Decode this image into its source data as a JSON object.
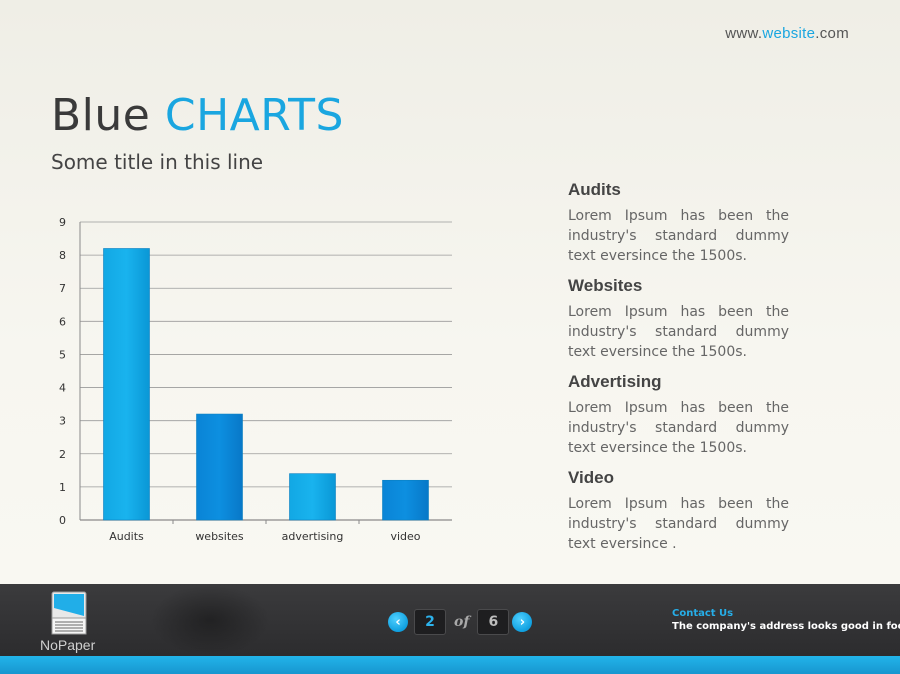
{
  "header": {
    "website_prefix": "www.",
    "website_accent": "website",
    "website_suffix": ".com"
  },
  "title": {
    "part1": "Blue ",
    "part2": "CHARTS",
    "subtitle": "Some title in this line"
  },
  "colors": {
    "accent": "#1aa6e0",
    "bar_light": "#19b3ee",
    "bar_dark": "#0d8fe0",
    "footer": "#333335",
    "bottom_bar": "#1ea6e0"
  },
  "chart_data": {
    "type": "bar",
    "categories": [
      "Audits",
      "websites",
      "advertising",
      "video"
    ],
    "values": [
      8.2,
      3.2,
      1.4,
      1.2
    ],
    "title": "",
    "xlabel": "",
    "ylabel": "",
    "ylim": [
      0,
      9
    ],
    "yticks": [
      0,
      1,
      2,
      3,
      4,
      5,
      6,
      7,
      8,
      9
    ],
    "grid": true
  },
  "legend": [
    {
      "title": "Audits",
      "text": "Lorem Ipsum has been the industry's standard dummy text eversince the 1500s."
    },
    {
      "title": "Websites",
      "text": "Lorem Ipsum has been the industry's standard dummy text eversince the 1500s."
    },
    {
      "title": "Advertising",
      "text": "Lorem Ipsum has been the industry's standard dummy text eversince the 1500s."
    },
    {
      "title": "Video",
      "text": "Lorem Ipsum has been the industry's standard dummy text eversince ."
    }
  ],
  "footer": {
    "logo_text": "NoPaper",
    "logo_icon": "paper-document-icon",
    "pager": {
      "prev_icon": "chevron-left-icon",
      "next_icon": "chevron-right-icon",
      "prev_glyph": "‹",
      "next_glyph": "›",
      "current": "2",
      "of_label": "of",
      "total": "6"
    },
    "contact_label": "Contact Us",
    "contact_text": "The company's address looks good in footer"
  }
}
